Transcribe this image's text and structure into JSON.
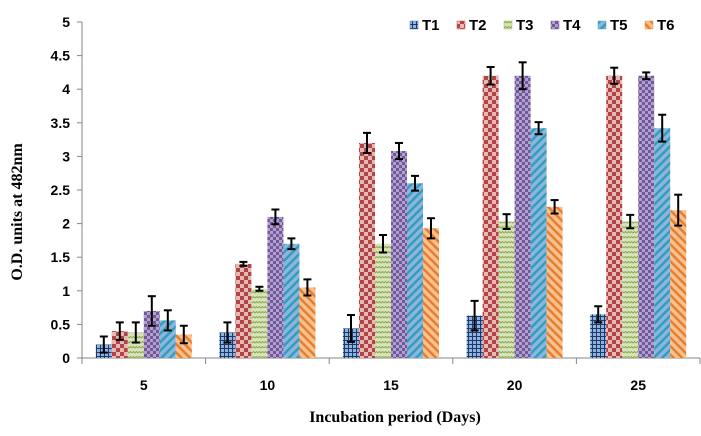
{
  "chart_data": {
    "type": "bar",
    "title": "",
    "xlabel": "Incubation period (Days)",
    "ylabel": "O.D. units at 482nm",
    "categories": [
      "5",
      "10",
      "15",
      "20",
      "25"
    ],
    "ylim": [
      0,
      5
    ],
    "yticks": [
      "0",
      "0.5",
      "1",
      "1.5",
      "2",
      "2.5",
      "3",
      "3.5",
      "4",
      "4.5",
      "5"
    ],
    "grid": false,
    "legend_position": "top-right",
    "series": [
      {
        "name": "T1",
        "color": "#4F81BD",
        "pattern": "grid",
        "values": [
          0.2,
          0.38,
          0.44,
          0.63,
          0.65
        ],
        "errors": [
          0.12,
          0.15,
          0.2,
          0.22,
          0.12
        ]
      },
      {
        "name": "T2",
        "color": "#C0504D",
        "pattern": "checker",
        "values": [
          0.4,
          1.4,
          3.2,
          4.2,
          4.2
        ],
        "errors": [
          0.13,
          0.03,
          0.15,
          0.13,
          0.12
        ]
      },
      {
        "name": "T3",
        "color": "#9BBB59",
        "pattern": "wave",
        "values": [
          0.38,
          1.03,
          1.7,
          2.03,
          2.03
        ],
        "errors": [
          0.15,
          0.03,
          0.13,
          0.11,
          0.1
        ]
      },
      {
        "name": "T4",
        "color": "#8064A2",
        "pattern": "checker-small",
        "values": [
          0.7,
          2.1,
          3.08,
          4.2,
          4.2
        ],
        "errors": [
          0.22,
          0.11,
          0.12,
          0.2,
          0.05
        ]
      },
      {
        "name": "T5",
        "color": "#4BACC6",
        "pattern": "diagonal-down",
        "values": [
          0.56,
          1.7,
          2.6,
          3.42,
          3.42
        ],
        "errors": [
          0.15,
          0.08,
          0.11,
          0.09,
          0.2
        ]
      },
      {
        "name": "T6",
        "color": "#F79646",
        "pattern": "diagonal-up",
        "values": [
          0.35,
          1.05,
          1.93,
          2.25,
          2.2
        ],
        "errors": [
          0.13,
          0.12,
          0.15,
          0.1,
          0.23
        ]
      }
    ]
  }
}
